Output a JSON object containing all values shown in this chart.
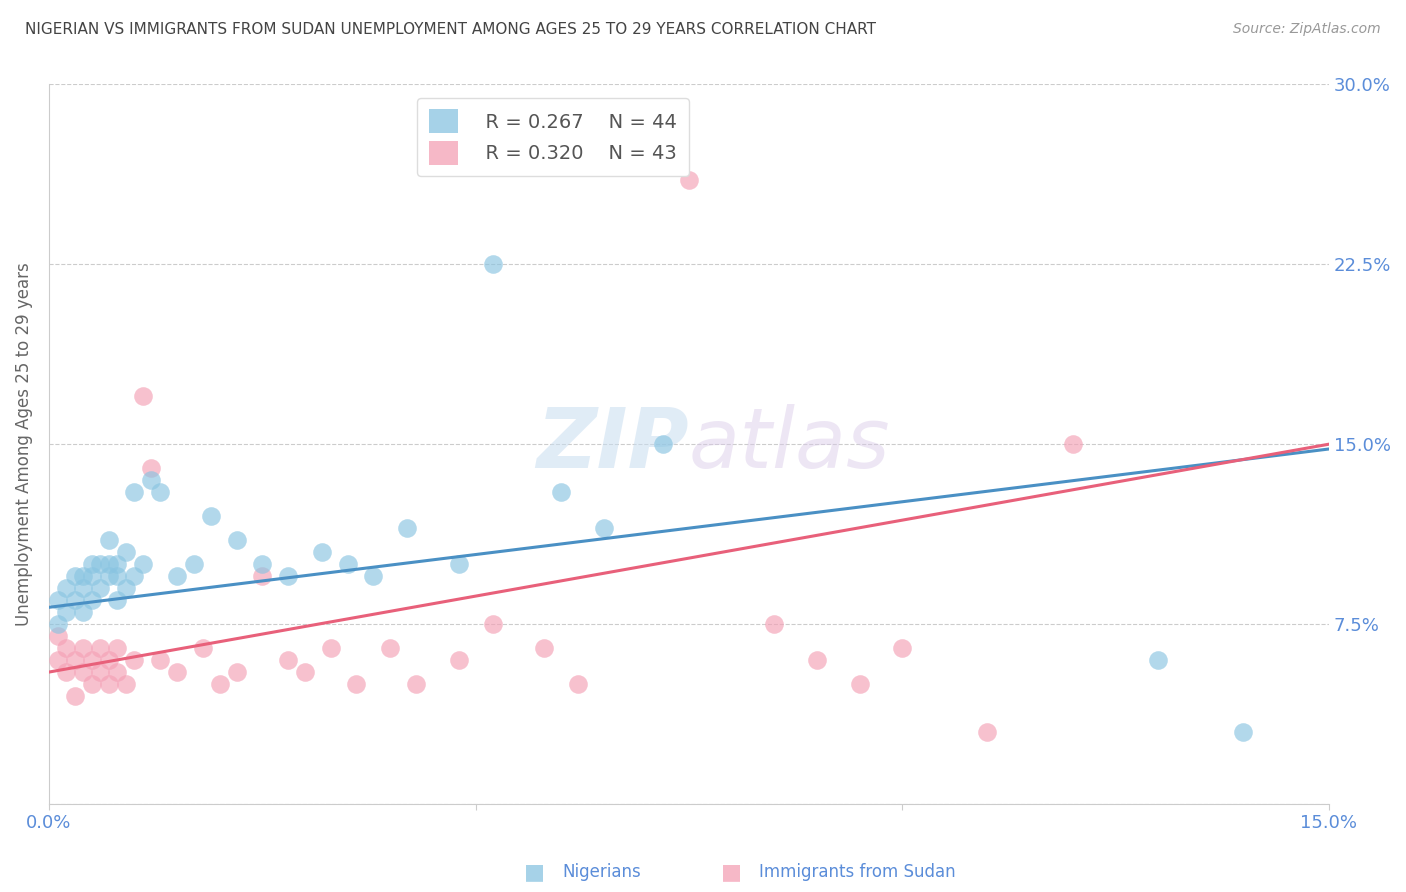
{
  "title": "NIGERIAN VS IMMIGRANTS FROM SUDAN UNEMPLOYMENT AMONG AGES 25 TO 29 YEARS CORRELATION CHART",
  "source": "Source: ZipAtlas.com",
  "ylabel": "Unemployment Among Ages 25 to 29 years",
  "xlim": [
    0.0,
    0.15
  ],
  "ylim": [
    0.0,
    0.3
  ],
  "xticks": [
    0.0,
    0.05,
    0.1,
    0.15
  ],
  "yticks": [
    0.0,
    0.075,
    0.15,
    0.225,
    0.3
  ],
  "xticklabels": [
    "0.0%",
    "",
    "",
    "15.0%"
  ],
  "yticklabels_right": [
    "",
    "7.5%",
    "15.0%",
    "22.5%",
    "30.0%"
  ],
  "grid_color": "#cccccc",
  "background_color": "#ffffff",
  "watermark_zip": "ZIP",
  "watermark_atlas": "atlas",
  "legend_r1": "R = 0.267",
  "legend_n1": "N = 44",
  "legend_r2": "R = 0.320",
  "legend_n2": "N = 43",
  "legend_label1": "Nigerians",
  "legend_label2": "Immigrants from Sudan",
  "color_blue": "#89c4e1",
  "color_pink": "#f4a0b5",
  "color_blue_line": "#4a90c4",
  "color_pink_line": "#e8607a",
  "color_axis_labels": "#5b8dd9",
  "title_color": "#444444",
  "nigerian_x": [
    0.001,
    0.001,
    0.002,
    0.002,
    0.003,
    0.003,
    0.004,
    0.004,
    0.004,
    0.005,
    0.005,
    0.005,
    0.006,
    0.006,
    0.007,
    0.007,
    0.007,
    0.008,
    0.008,
    0.008,
    0.009,
    0.009,
    0.01,
    0.01,
    0.011,
    0.012,
    0.013,
    0.015,
    0.017,
    0.019,
    0.022,
    0.025,
    0.028,
    0.032,
    0.035,
    0.038,
    0.042,
    0.048,
    0.052,
    0.06,
    0.065,
    0.072,
    0.13,
    0.14
  ],
  "nigerian_y": [
    0.075,
    0.085,
    0.08,
    0.09,
    0.085,
    0.095,
    0.08,
    0.09,
    0.095,
    0.085,
    0.095,
    0.1,
    0.09,
    0.1,
    0.095,
    0.1,
    0.11,
    0.085,
    0.095,
    0.1,
    0.09,
    0.105,
    0.095,
    0.13,
    0.1,
    0.135,
    0.13,
    0.095,
    0.1,
    0.12,
    0.11,
    0.1,
    0.095,
    0.105,
    0.1,
    0.095,
    0.115,
    0.1,
    0.225,
    0.13,
    0.115,
    0.15,
    0.06,
    0.03
  ],
  "sudan_x": [
    0.001,
    0.001,
    0.002,
    0.002,
    0.003,
    0.003,
    0.004,
    0.004,
    0.005,
    0.005,
    0.006,
    0.006,
    0.007,
    0.007,
    0.008,
    0.008,
    0.009,
    0.01,
    0.011,
    0.012,
    0.013,
    0.015,
    0.018,
    0.02,
    0.022,
    0.025,
    0.028,
    0.03,
    0.033,
    0.036,
    0.04,
    0.043,
    0.048,
    0.052,
    0.058,
    0.062,
    0.075,
    0.085,
    0.09,
    0.095,
    0.1,
    0.11,
    0.12
  ],
  "sudan_y": [
    0.06,
    0.07,
    0.055,
    0.065,
    0.045,
    0.06,
    0.055,
    0.065,
    0.05,
    0.06,
    0.055,
    0.065,
    0.05,
    0.06,
    0.055,
    0.065,
    0.05,
    0.06,
    0.17,
    0.14,
    0.06,
    0.055,
    0.065,
    0.05,
    0.055,
    0.095,
    0.06,
    0.055,
    0.065,
    0.05,
    0.065,
    0.05,
    0.06,
    0.075,
    0.065,
    0.05,
    0.26,
    0.075,
    0.06,
    0.05,
    0.065,
    0.03,
    0.15
  ],
  "blue_line_x": [
    0.0,
    0.15
  ],
  "blue_line_y": [
    0.082,
    0.148
  ],
  "pink_line_x": [
    0.0,
    0.15
  ],
  "pink_line_y": [
    0.055,
    0.15
  ]
}
